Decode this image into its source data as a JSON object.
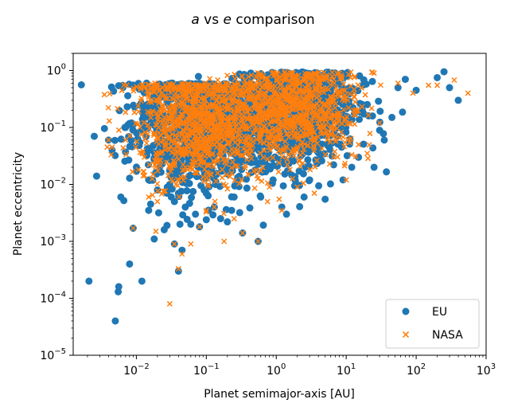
{
  "chart_data": {
    "type": "scatter",
    "title_parts": [
      {
        "text": "a",
        "italic": true
      },
      {
        "text": " vs ",
        "italic": false
      },
      {
        "text": "e",
        "italic": true
      },
      {
        "text": " comparison",
        "italic": false
      }
    ],
    "xlabel": "Planet semimajor-axis [AU]",
    "ylabel": "Planet eccentricity",
    "xscale": "log",
    "yscale": "log",
    "xlim": [
      0.00125,
      1000
    ],
    "ylim": [
      1e-05,
      2
    ],
    "x_ticks": [
      {
        "value": 0.01,
        "base": "10",
        "exp": "−2"
      },
      {
        "value": 0.1,
        "base": "10",
        "exp": "−1"
      },
      {
        "value": 1,
        "base": "10",
        "exp": "0"
      },
      {
        "value": 10,
        "base": "10",
        "exp": "1"
      },
      {
        "value": 100,
        "base": "10",
        "exp": "2"
      },
      {
        "value": 1000,
        "base": "10",
        "exp": "3"
      }
    ],
    "y_ticks": [
      {
        "value": 1e-05,
        "base": "10",
        "exp": "−5"
      },
      {
        "value": 0.0001,
        "base": "10",
        "exp": "−4"
      },
      {
        "value": 0.001,
        "base": "10",
        "exp": "−3"
      },
      {
        "value": 0.01,
        "base": "10",
        "exp": "−2"
      },
      {
        "value": 0.1,
        "base": "10",
        "exp": "−1"
      },
      {
        "value": 1,
        "base": "10",
        "exp": "0"
      }
    ],
    "grid": false,
    "legend_position": "lower-right",
    "series": [
      {
        "name": "EU",
        "marker": "circle",
        "color": "#1f77b4",
        "points": [
          [
            0.0021,
            0.0002
          ],
          [
            0.005,
            4e-05
          ],
          [
            0.0055,
            0.00013
          ],
          [
            0.0056,
            0.00016
          ],
          [
            0.008,
            0.0004
          ],
          [
            0.012,
            0.0002
          ],
          [
            0.009,
            0.0017
          ],
          [
            0.018,
            0.0011
          ],
          [
            0.0025,
            0.07
          ],
          [
            0.0027,
            0.014
          ],
          [
            0.004,
            0.06
          ],
          [
            0.0045,
            0.04
          ],
          [
            0.006,
            0.006
          ],
          [
            0.007,
            0.1
          ],
          [
            0.01,
            0.017
          ],
          [
            0.014,
            0.6
          ],
          [
            0.015,
            0.25
          ],
          [
            0.015,
            0.0035
          ],
          [
            0.016,
            0.0045
          ],
          [
            0.025,
            0.0016
          ],
          [
            0.035,
            0.0009
          ],
          [
            0.04,
            0.0003
          ],
          [
            0.042,
            0.002
          ],
          [
            0.045,
            0.0007
          ],
          [
            0.06,
            0.002
          ],
          [
            0.07,
            0.003
          ],
          [
            0.08,
            0.0018
          ],
          [
            0.1,
            0.0024
          ],
          [
            0.13,
            0.004
          ],
          [
            0.16,
            0.0025
          ],
          [
            0.2,
            0.0022
          ],
          [
            0.23,
            0.0035
          ],
          [
            0.3,
            0.0032
          ],
          [
            0.33,
            0.0014
          ],
          [
            0.55,
            0.001
          ],
          [
            1.2,
            0.004
          ],
          [
            1.4,
            0.003
          ],
          [
            5,
            0.0055
          ],
          [
            0.035,
            0.005
          ],
          [
            0.05,
            0.004
          ],
          [
            0.02,
            0.008
          ],
          [
            0.04,
            0.007
          ],
          [
            0.1,
            0.007
          ],
          [
            0.25,
            0.006
          ],
          [
            0.6,
            0.006
          ],
          [
            2.5,
            0.006
          ],
          [
            0.015,
            0.012
          ],
          [
            0.03,
            0.01
          ],
          [
            0.9,
            0.012
          ],
          [
            3,
            0.012
          ],
          [
            9,
            0.012
          ],
          [
            0.5,
            0.018
          ],
          [
            70,
            0.7
          ],
          [
            100,
            0.45
          ],
          [
            200,
            0.75
          ],
          [
            300,
            0.5
          ],
          [
            400,
            0.3
          ],
          [
            250,
            0.95
          ],
          [
            55,
            0.5
          ],
          [
            45,
            0.15
          ],
          [
            15,
            0.03
          ],
          [
            12,
            0.02
          ],
          [
            35,
            0.06
          ],
          [
            25,
            0.02
          ]
        ]
      },
      {
        "name": "NASA",
        "marker": "x",
        "color": "#ff7f0e",
        "points": [
          [
            0.004,
            0.06
          ],
          [
            0.0045,
            0.045
          ],
          [
            0.007,
            0.06
          ],
          [
            0.009,
            0.0017
          ],
          [
            0.015,
            0.006
          ],
          [
            0.017,
            0.0065
          ],
          [
            0.019,
            0.0015
          ],
          [
            0.02,
            0.005
          ],
          [
            0.03,
            8e-05
          ],
          [
            0.035,
            0.0009
          ],
          [
            0.04,
            0.00033
          ],
          [
            0.045,
            0.0006
          ],
          [
            0.06,
            0.0009
          ],
          [
            0.08,
            0.0018
          ],
          [
            0.1,
            0.0035
          ],
          [
            0.13,
            0.004
          ],
          [
            0.18,
            0.001
          ],
          [
            0.25,
            0.0025
          ],
          [
            0.33,
            0.0014
          ],
          [
            0.55,
            0.001
          ],
          [
            0.75,
            0.005
          ],
          [
            1.1,
            0.0055
          ],
          [
            1.2,
            0.0035
          ],
          [
            2,
            0.009
          ],
          [
            3.5,
            0.007
          ],
          [
            0.015,
            0.35
          ],
          [
            0.016,
            0.3
          ],
          [
            0.013,
            0.03
          ],
          [
            0.03,
            0.02
          ],
          [
            0.05,
            0.02
          ],
          [
            0.4,
            0.015
          ],
          [
            0.8,
            0.009
          ],
          [
            10,
            0.012
          ],
          [
            20,
            0.035
          ],
          [
            30,
            0.12
          ],
          [
            55,
            0.6
          ],
          [
            90,
            0.4
          ],
          [
            150,
            0.55
          ],
          [
            350,
            0.68
          ],
          [
            550,
            0.4
          ],
          [
            200,
            0.55
          ],
          [
            15,
            0.05
          ],
          [
            25,
            0.9
          ],
          [
            8,
            0.9
          ]
        ]
      }
    ],
    "clusters": [
      {
        "series": "EU",
        "center": [
          0.09,
          0.13
        ],
        "spread": [
          0.5,
          0.55
        ],
        "count": 1100,
        "ymax": 0.6
      },
      {
        "series": "EU",
        "center": [
          2.0,
          0.2
        ],
        "spread": [
          0.45,
          0.5
        ],
        "count": 850,
        "ymax": 0.95
      },
      {
        "series": "NASA",
        "center": [
          0.09,
          0.13
        ],
        "spread": [
          0.48,
          0.52
        ],
        "count": 1100,
        "ymax": 0.6
      },
      {
        "series": "NASA",
        "center": [
          2.0,
          0.22
        ],
        "spread": [
          0.43,
          0.45
        ],
        "count": 850,
        "ymax": 0.95
      }
    ]
  }
}
